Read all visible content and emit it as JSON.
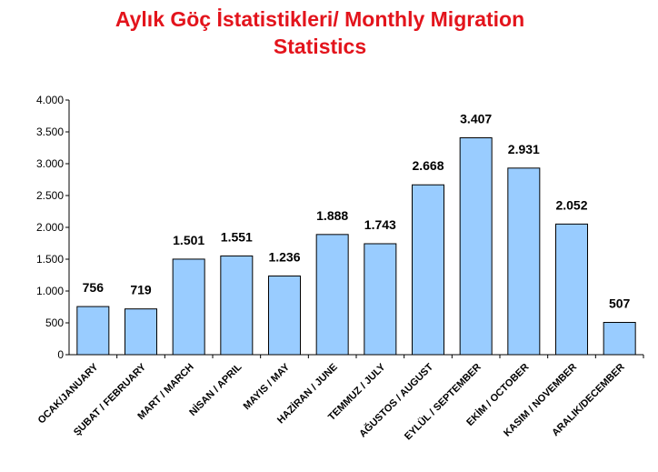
{
  "chart_data": {
    "type": "bar",
    "title": "Aylık Göç İstatistikleri/ Monthly Migration Statistics",
    "categories": [
      "OCAK/JANUARY",
      "ŞUBAT / FEBRUARY",
      "MART / MARCH",
      "NİSAN / APRIL",
      "MAYIS / MAY",
      "HAZİRAN / JUNE",
      "TEMMUZ / JULY",
      "AĞUSTOS / AUGUST",
      "EYLÜL / SEPTEMBER",
      "EKİM / OCTOBER",
      "KASIM / NOVEMBER",
      "ARALIK/DECEMBER"
    ],
    "values": [
      756,
      719,
      1501,
      1551,
      1236,
      1888,
      1743,
      2668,
      3407,
      2931,
      2052,
      507
    ],
    "value_labels": [
      "756",
      "719",
      "1.501",
      "1.551",
      "1.236",
      "1.888",
      "1.743",
      "2.668",
      "3.407",
      "2.931",
      "2.052",
      "507"
    ],
    "color": "#99ccff",
    "ylim": [
      0,
      4000
    ],
    "yticks": [
      0,
      500,
      {
        "value": 1000,
        "label": "1.000"
      },
      {
        "value": 1500,
        "label": "1.500"
      },
      {
        "value": 2000,
        "label": "2.000"
      },
      {
        "value": 2500,
        "label": "2.500"
      },
      {
        "value": 3000,
        "label": "3.000"
      },
      {
        "value": 3500,
        "label": "3.500"
      },
      {
        "value": 4000,
        "label": "4.000"
      }
    ],
    "grid": false
  }
}
